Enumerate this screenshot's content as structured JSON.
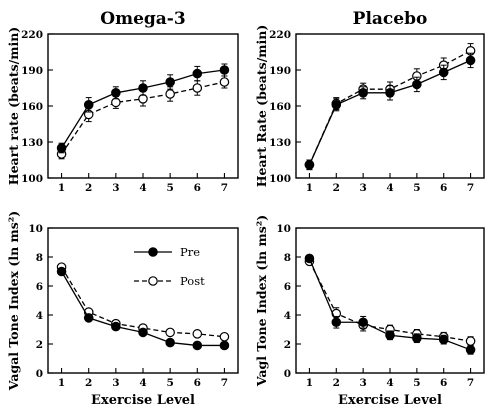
{
  "column_titles": [
    "Omega-3",
    "Placebo"
  ],
  "legend": {
    "pre": "Pre",
    "post": "Post"
  },
  "chart_data": [
    {
      "type": "line",
      "ylabel": "Heart rate (beats/min)",
      "xlabel": "",
      "x": [
        1,
        2,
        3,
        4,
        5,
        6,
        7
      ],
      "xlim": [
        0.5,
        7.5
      ],
      "ylim": [
        100,
        220
      ],
      "yticks": [
        100,
        130,
        160,
        190,
        220
      ],
      "series": [
        {
          "name": "Pre",
          "marker": "filled",
          "values": [
            125,
            161,
            171,
            175,
            180,
            187,
            190
          ],
          "errors": [
            4,
            6,
            5,
            6,
            6,
            6,
            5
          ]
        },
        {
          "name": "Post",
          "marker": "open",
          "values": [
            120,
            153,
            163,
            166,
            170,
            175,
            180
          ],
          "errors": [
            4,
            6,
            5,
            6,
            6,
            6,
            5
          ]
        }
      ]
    },
    {
      "type": "line",
      "ylabel": "Heart Rate (beats/min)",
      "xlabel": "",
      "x": [
        1,
        2,
        3,
        4,
        5,
        6,
        7
      ],
      "xlim": [
        0.5,
        7.5
      ],
      "ylim": [
        100,
        220
      ],
      "yticks": [
        100,
        130,
        160,
        190,
        220
      ],
      "series": [
        {
          "name": "Pre",
          "marker": "filled",
          "values": [
            111,
            161,
            171,
            171,
            178,
            188,
            198
          ],
          "errors": [
            4,
            5,
            5,
            6,
            6,
            6,
            6
          ]
        },
        {
          "name": "Post",
          "marker": "open",
          "values": [
            111,
            162,
            174,
            174,
            185,
            194,
            206
          ],
          "errors": [
            4,
            5,
            5,
            6,
            6,
            6,
            6
          ]
        }
      ]
    },
    {
      "type": "line",
      "ylabel": "Vagal Tone Index (ln ms²)",
      "xlabel": "Exercise Level",
      "x": [
        1,
        2,
        3,
        4,
        5,
        6,
        7
      ],
      "xlim": [
        0.5,
        7.5
      ],
      "ylim": [
        0,
        10
      ],
      "yticks": [
        0,
        2,
        4,
        6,
        8,
        10
      ],
      "series": [
        {
          "name": "Pre",
          "marker": "filled",
          "values": [
            7.0,
            3.8,
            3.2,
            2.8,
            2.1,
            1.9,
            1.9
          ],
          "errors": [
            0.2,
            0.2,
            0.2,
            0.2,
            0.2,
            0.2,
            0.2
          ]
        },
        {
          "name": "Post",
          "marker": "open",
          "values": [
            7.3,
            4.2,
            3.4,
            3.1,
            2.8,
            2.7,
            2.5
          ],
          "errors": [
            0.2,
            0.2,
            0.2,
            0.2,
            0.2,
            0.2,
            0.2
          ]
        }
      ]
    },
    {
      "type": "line",
      "ylabel": "Vagl Tone Index (ln ms²)",
      "xlabel": "Exercise Level",
      "x": [
        1,
        2,
        3,
        4,
        5,
        6,
        7
      ],
      "xlim": [
        0.5,
        7.5
      ],
      "ylim": [
        0,
        10
      ],
      "yticks": [
        0,
        2,
        4,
        6,
        8,
        10
      ],
      "series": [
        {
          "name": "Pre",
          "marker": "filled",
          "values": [
            7.9,
            3.5,
            3.5,
            2.6,
            2.4,
            2.3,
            1.6
          ],
          "errors": [
            0.2,
            0.4,
            0.4,
            0.3,
            0.3,
            0.3,
            0.3
          ]
        },
        {
          "name": "Post",
          "marker": "open",
          "values": [
            7.7,
            4.1,
            3.3,
            3.0,
            2.7,
            2.5,
            2.2
          ],
          "errors": [
            0.2,
            0.4,
            0.4,
            0.3,
            0.3,
            0.3,
            0.3
          ]
        }
      ]
    }
  ]
}
